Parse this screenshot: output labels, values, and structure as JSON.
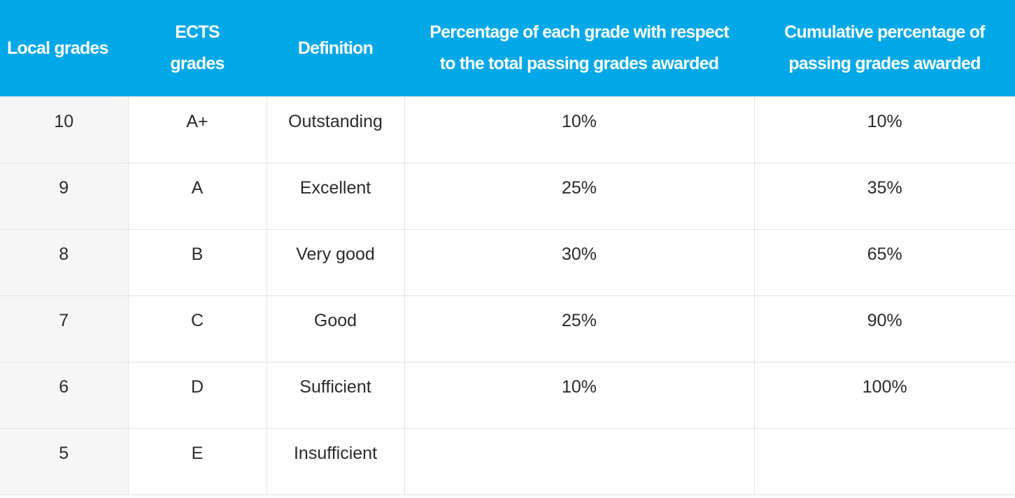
{
  "table": {
    "headers": [
      "Local grades",
      "ECTS grades",
      "Definition",
      "Percentage of each grade with respect to the total passing grades awarded",
      "Cumulative percentage of passing grades awarded"
    ],
    "header_lines": {
      "ects": [
        "ECTS",
        "grades"
      ],
      "percentage": [
        "Percentage of each grade with respect",
        "to the total passing grades awarded"
      ],
      "cumulative": [
        "Cumulative percentage of",
        "passing grades awarded"
      ]
    },
    "rows": [
      {
        "local": "10",
        "ects": "A+",
        "definition": "Outstanding",
        "percentage": "10%",
        "cumulative": "10%"
      },
      {
        "local": "9",
        "ects": "A",
        "definition": "Excellent",
        "percentage": "25%",
        "cumulative": "35%"
      },
      {
        "local": "8",
        "ects": "B",
        "definition": "Very good",
        "percentage": "30%",
        "cumulative": "65%"
      },
      {
        "local": "7",
        "ects": "C",
        "definition": "Good",
        "percentage": "25%",
        "cumulative": "90%"
      },
      {
        "local": "6",
        "ects": "D",
        "definition": "Sufficient",
        "percentage": "10%",
        "cumulative": "100%"
      },
      {
        "local": "5",
        "ects": "E",
        "definition": "Insufficient",
        "percentage": "",
        "cumulative": ""
      }
    ]
  },
  "colors": {
    "header_background": "#00a8e8",
    "header_text": "#ffffff",
    "first_column_background": "#f6f6f6",
    "cell_text": "#2b2b2b",
    "border": "#e3e3e3"
  }
}
